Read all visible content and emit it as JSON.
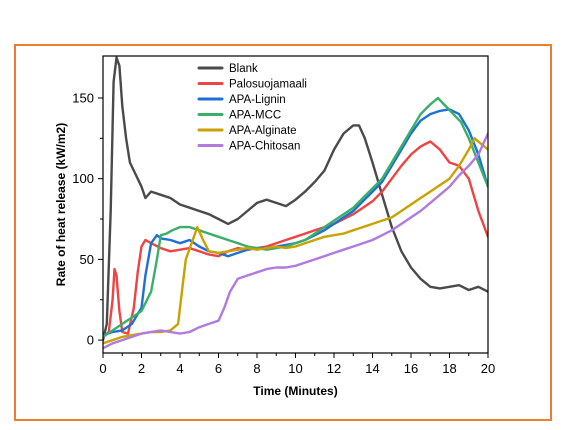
{
  "colors": {
    "frame_border": "#ED7D31",
    "axis": "#000000"
  },
  "chart_data": {
    "type": "line",
    "title": "",
    "xlabel": "Time (Minutes)",
    "ylabel": "Rate of heat release (kW/m2)",
    "xlim": [
      0,
      20
    ],
    "ylim": [
      -8,
      176
    ],
    "xticks": [
      0,
      2,
      4,
      6,
      8,
      10,
      12,
      14,
      16,
      18,
      20
    ],
    "yticks": [
      0,
      50,
      100,
      150
    ],
    "grid": false,
    "legend_position": "top-center",
    "series": [
      {
        "name": "Blank",
        "color": "#4a4a4a",
        "x": [
          0,
          0.2,
          0.4,
          0.55,
          0.7,
          0.85,
          1.0,
          1.2,
          1.4,
          1.6,
          1.8,
          2.0,
          2.2,
          2.5,
          3.0,
          3.5,
          4.0,
          4.5,
          5.0,
          5.5,
          6.0,
          6.5,
          7.0,
          7.5,
          8.0,
          8.5,
          9.0,
          9.5,
          10.0,
          10.5,
          11.0,
          11.5,
          12.0,
          12.5,
          13.0,
          13.3,
          13.6,
          14.0,
          14.5,
          15.0,
          15.5,
          16.0,
          16.5,
          17.0,
          17.5,
          18.0,
          18.5,
          19.0,
          19.5,
          20.0
        ],
        "y": [
          0,
          10,
          80,
          160,
          175,
          170,
          145,
          125,
          110,
          105,
          100,
          95,
          88,
          92,
          90,
          88,
          84,
          82,
          80,
          78,
          75,
          72,
          75,
          80,
          85,
          87,
          85,
          83,
          87,
          92,
          98,
          105,
          118,
          128,
          133,
          133,
          125,
          110,
          90,
          70,
          55,
          45,
          38,
          33,
          32,
          33,
          34,
          31,
          33,
          30
        ]
      },
      {
        "name": "Palosuojamaali",
        "color": "#EF4444",
        "x": [
          0,
          0.3,
          0.5,
          0.6,
          0.7,
          0.85,
          1.0,
          1.3,
          1.6,
          1.8,
          2.0,
          2.2,
          2.5,
          3.0,
          3.5,
          4.0,
          4.5,
          5.0,
          5.5,
          6.0,
          6.5,
          7.0,
          7.5,
          8.0,
          8.5,
          9.0,
          9.5,
          10.0,
          10.5,
          11.0,
          11.5,
          12.0,
          12.5,
          13.0,
          13.5,
          14.0,
          14.5,
          15.0,
          15.5,
          16.0,
          16.5,
          17.0,
          17.5,
          18.0,
          18.5,
          19.0,
          19.5,
          20.0
        ],
        "y": [
          2,
          5,
          25,
          44,
          40,
          18,
          5,
          4,
          20,
          42,
          58,
          62,
          60,
          57,
          55,
          56,
          57,
          55,
          53,
          52,
          55,
          57,
          56,
          57,
          58,
          60,
          62,
          64,
          66,
          68,
          70,
          72,
          75,
          78,
          82,
          86,
          92,
          100,
          108,
          115,
          120,
          123,
          118,
          110,
          108,
          100,
          80,
          64
        ]
      },
      {
        "name": "APA-Lignin",
        "color": "#1F6FD6",
        "x": [
          0,
          0.5,
          1.0,
          1.5,
          2.0,
          2.2,
          2.5,
          2.8,
          3.0,
          3.5,
          4.0,
          4.5,
          5.0,
          5.5,
          6.0,
          6.5,
          7.0,
          7.5,
          8.0,
          8.5,
          9.0,
          9.5,
          10.0,
          10.5,
          11.0,
          11.5,
          12.0,
          12.5,
          13.0,
          13.5,
          14.0,
          14.5,
          15.0,
          15.5,
          16.0,
          16.5,
          17.0,
          17.5,
          18.0,
          18.5,
          19.0,
          19.5,
          20.0
        ],
        "y": [
          3,
          5,
          6,
          10,
          20,
          40,
          60,
          65,
          63,
          62,
          60,
          62,
          58,
          55,
          54,
          52,
          54,
          56,
          57,
          57,
          58,
          59,
          60,
          62,
          65,
          68,
          72,
          76,
          80,
          86,
          92,
          98,
          108,
          118,
          128,
          136,
          140,
          142,
          143,
          140,
          130,
          115,
          95
        ]
      },
      {
        "name": "APA-MCC",
        "color": "#3AAF6A",
        "x": [
          0,
          0.5,
          1.0,
          1.5,
          2.0,
          2.5,
          2.8,
          3.0,
          3.3,
          3.6,
          4.0,
          4.5,
          5.0,
          5.5,
          6.0,
          6.5,
          7.0,
          7.5,
          8.0,
          8.5,
          9.0,
          9.5,
          10.0,
          10.5,
          11.0,
          11.5,
          12.0,
          12.5,
          13.0,
          13.5,
          14.0,
          14.5,
          15.0,
          15.5,
          16.0,
          16.5,
          17.0,
          17.4,
          17.8,
          18.2,
          18.6,
          19.0,
          19.5,
          20.0
        ],
        "y": [
          2,
          6,
          10,
          14,
          18,
          30,
          50,
          65,
          66,
          68,
          70,
          70,
          68,
          66,
          64,
          62,
          60,
          58,
          57,
          56,
          57,
          58,
          60,
          62,
          66,
          70,
          74,
          78,
          82,
          88,
          94,
          100,
          110,
          120,
          130,
          140,
          146,
          150,
          145,
          140,
          135,
          125,
          110,
          95
        ]
      },
      {
        "name": "APA-Alginate",
        "color": "#C9A100",
        "x": [
          0,
          0.5,
          1.0,
          1.5,
          2.0,
          2.5,
          3.0,
          3.5,
          3.9,
          4.1,
          4.3,
          4.6,
          4.9,
          5.2,
          5.5,
          6.0,
          6.5,
          7.0,
          7.5,
          8.0,
          8.5,
          9.0,
          9.5,
          10.0,
          10.5,
          11.0,
          11.5,
          12.0,
          12.5,
          13.0,
          13.5,
          14.0,
          14.5,
          15.0,
          15.5,
          16.0,
          16.5,
          17.0,
          17.5,
          18.0,
          18.5,
          19.0,
          19.3,
          19.6,
          20.0
        ],
        "y": [
          -2,
          0,
          2,
          3,
          4,
          5,
          5,
          6,
          10,
          30,
          50,
          60,
          70,
          62,
          55,
          54,
          55,
          56,
          57,
          56,
          57,
          58,
          57,
          58,
          60,
          62,
          64,
          65,
          66,
          68,
          70,
          72,
          74,
          76,
          80,
          84,
          88,
          92,
          96,
          100,
          108,
          118,
          125,
          122,
          118
        ]
      },
      {
        "name": "APA-Chitosan",
        "color": "#B07ADF",
        "x": [
          0,
          0.5,
          1.0,
          1.5,
          2.0,
          2.5,
          3.0,
          3.5,
          4.0,
          4.5,
          5.0,
          5.5,
          6.0,
          6.3,
          6.6,
          7.0,
          7.5,
          8.0,
          8.5,
          9.0,
          9.5,
          10.0,
          10.5,
          11.0,
          11.5,
          12.0,
          12.5,
          13.0,
          13.5,
          14.0,
          14.5,
          15.0,
          15.5,
          16.0,
          16.5,
          17.0,
          17.5,
          18.0,
          18.5,
          19.0,
          19.5,
          20.0
        ],
        "y": [
          -5,
          -2,
          0,
          2,
          4,
          5,
          6,
          5,
          4,
          5,
          8,
          10,
          12,
          20,
          30,
          38,
          40,
          42,
          44,
          45,
          45,
          46,
          48,
          50,
          52,
          54,
          56,
          58,
          60,
          62,
          65,
          68,
          72,
          76,
          80,
          85,
          90,
          95,
          102,
          108,
          115,
          128
        ]
      }
    ]
  }
}
